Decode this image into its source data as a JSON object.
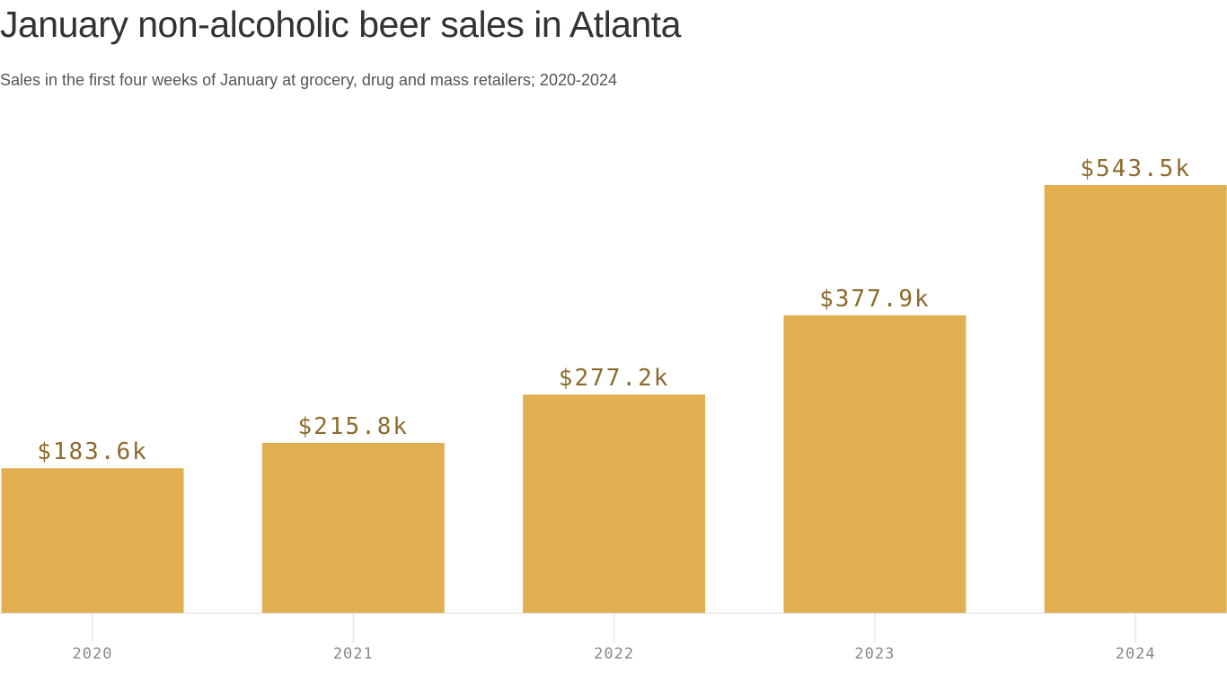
{
  "chart_data": {
    "type": "bar",
    "title": "January non-alcoholic beer sales in Atlanta",
    "subtitle": "Sales in the first four weeks of January at grocery, drug and mass retailers; 2020-2024",
    "categories": [
      "2020",
      "2021",
      "2022",
      "2023",
      "2024"
    ],
    "values": [
      183.6,
      215.8,
      277.2,
      377.9,
      543.5
    ],
    "data_labels": [
      "$183.6k",
      "$215.8k",
      "$277.2k",
      "$377.9k",
      "$543.5k"
    ],
    "xlabel": "",
    "ylabel": "",
    "ylim": [
      0,
      543.5
    ],
    "grid": false,
    "bar_color": "#e1ae50",
    "label_color": "#8c6a2c"
  }
}
